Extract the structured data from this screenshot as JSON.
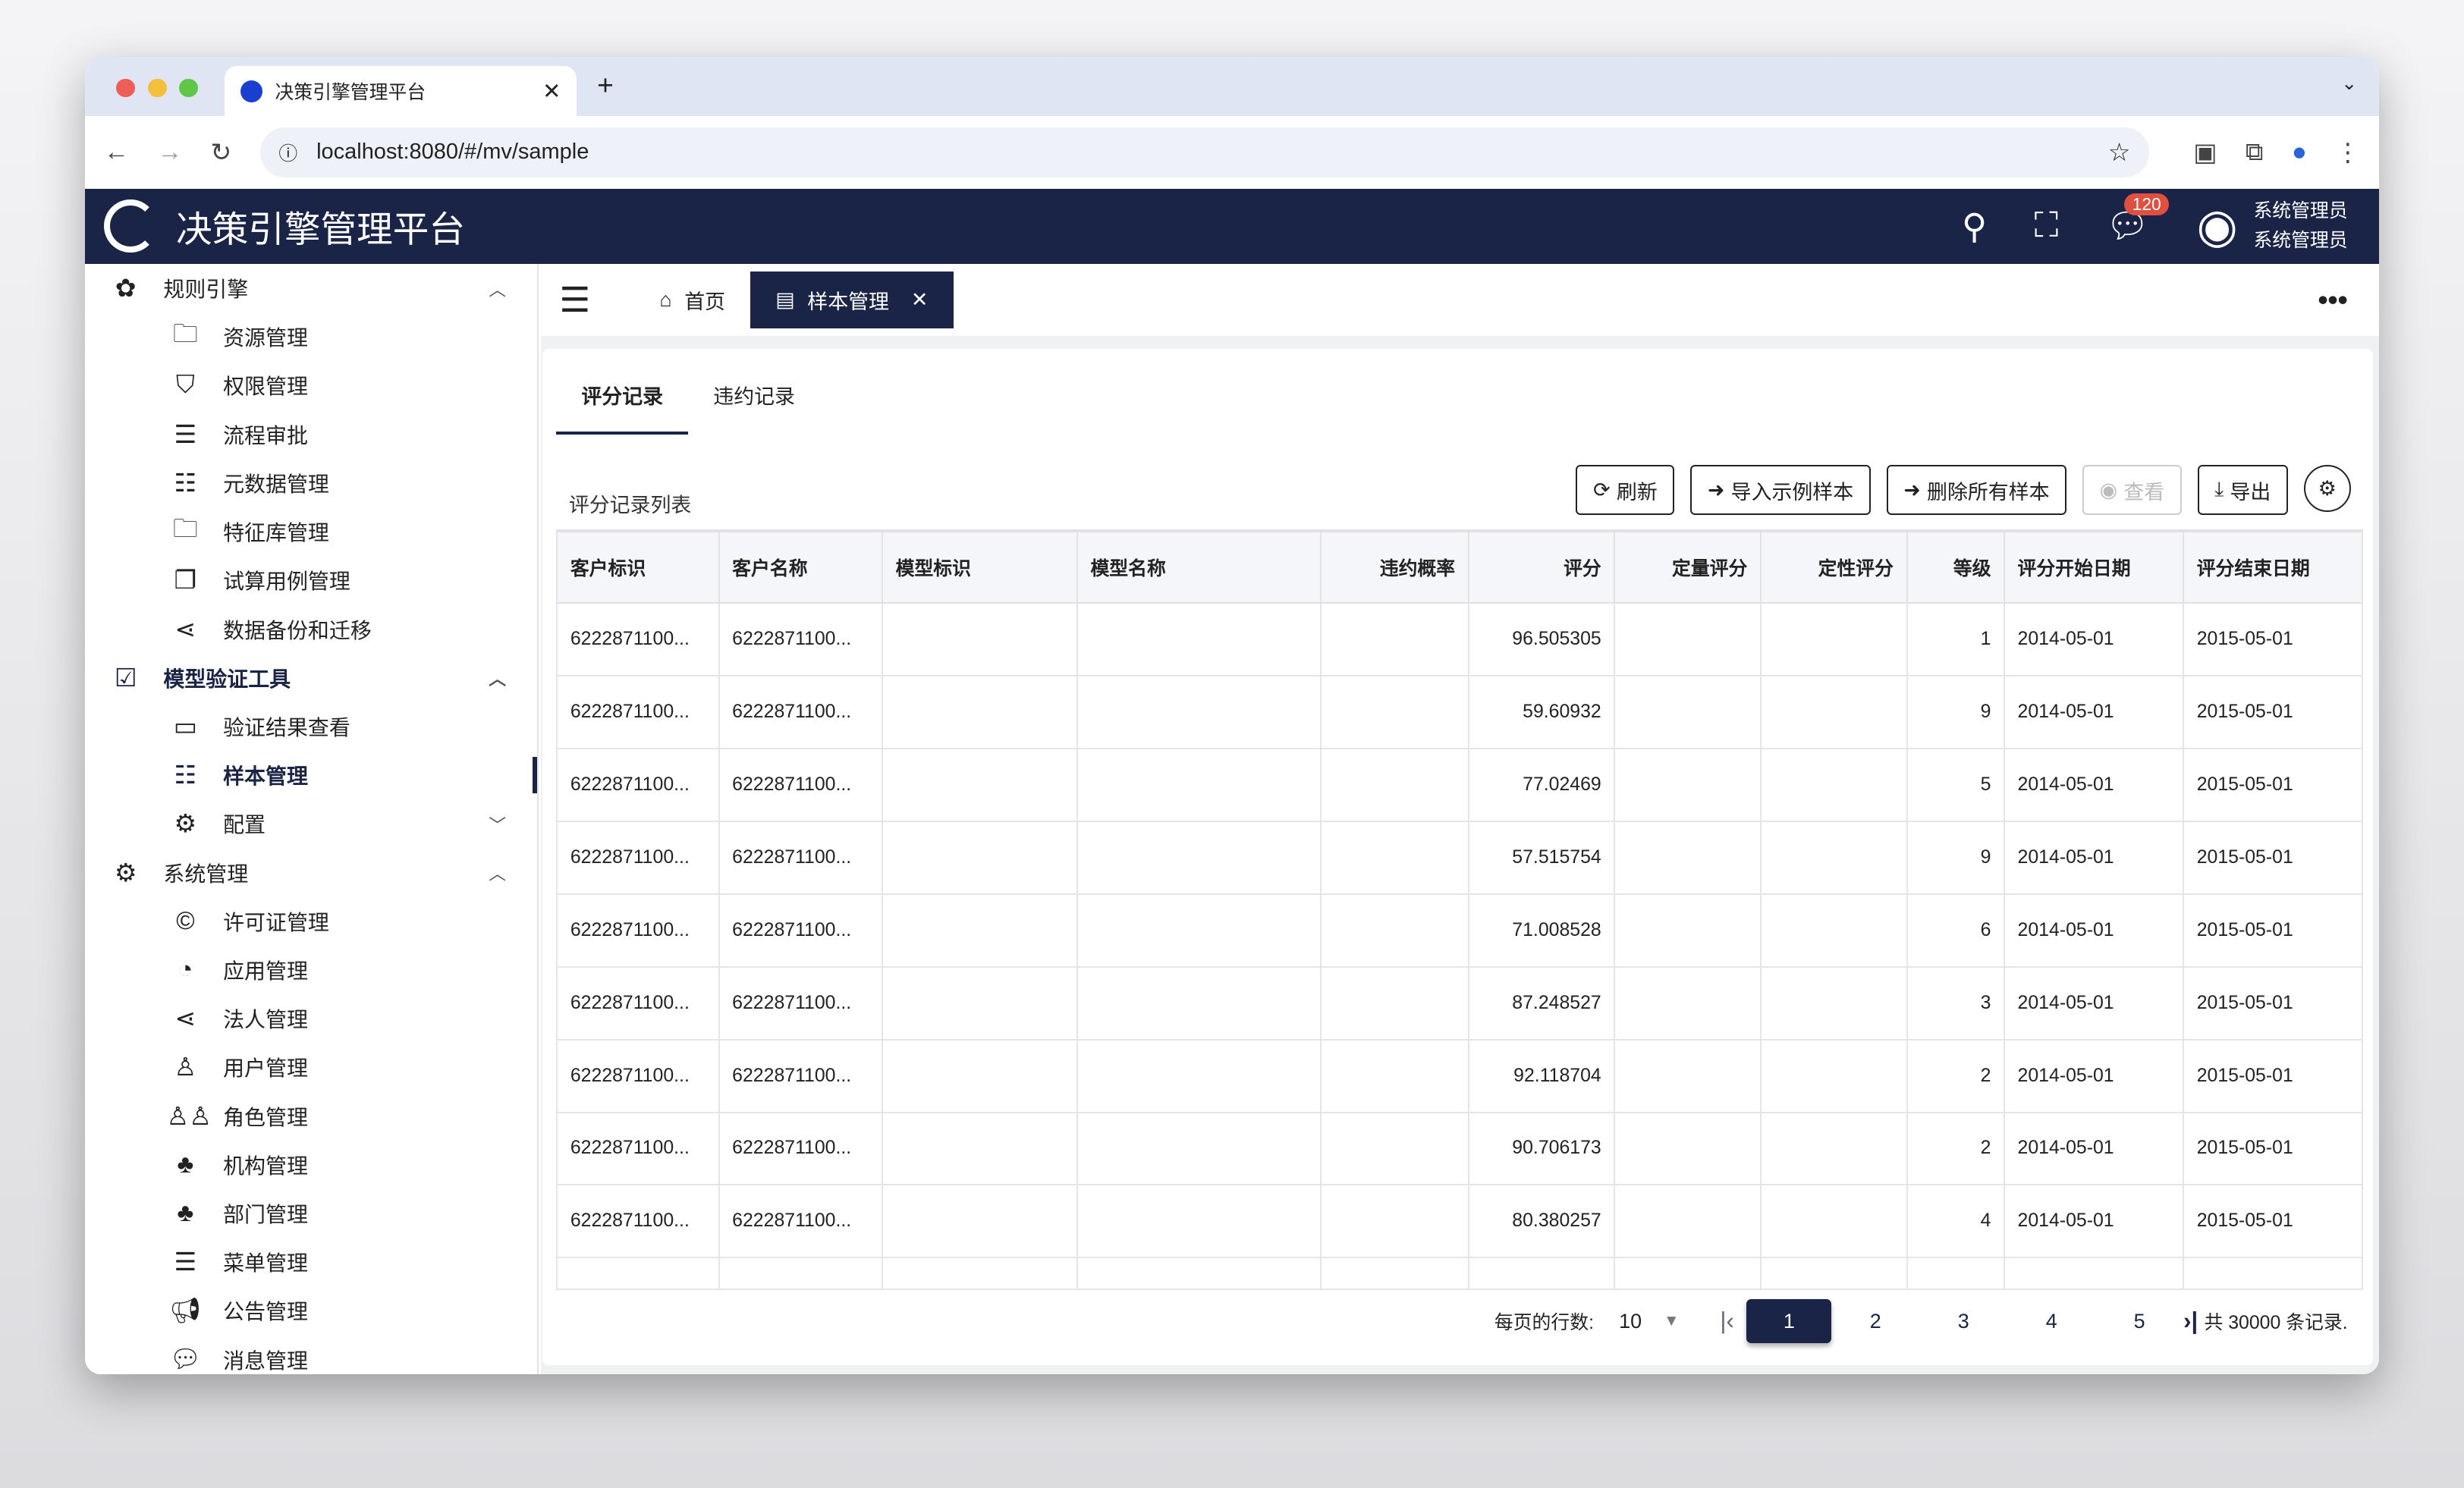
{
  "browser": {
    "tab_title": "决策引擎管理平台",
    "url": "localhost:8080/#/mv/sample"
  },
  "header": {
    "title": "决策引擎管理平台",
    "badge": "120",
    "user_name": "系统管理员",
    "user_role": "系统管理员"
  },
  "sidebar": {
    "groups": [
      {
        "label": "规则引擎",
        "icon": "cluster-icon",
        "items": [
          {
            "label": "资源管理",
            "icon": "folder-icon"
          },
          {
            "label": "权限管理",
            "icon": "shield-icon"
          },
          {
            "label": "流程审批",
            "icon": "sliders-icon"
          },
          {
            "label": "元数据管理",
            "icon": "list-icon"
          },
          {
            "label": "特征库管理",
            "icon": "folder-icon"
          },
          {
            "label": "试算用例管理",
            "icon": "copy-icon"
          },
          {
            "label": "数据备份和迁移",
            "icon": "share-icon"
          }
        ]
      },
      {
        "label": "模型验证工具",
        "icon": "clipboard-icon",
        "active": true,
        "items": [
          {
            "label": "验证结果查看",
            "icon": "monitor-icon"
          },
          {
            "label": "样本管理",
            "icon": "list-icon",
            "active": true
          },
          {
            "label": "配置",
            "icon": "gear-icon",
            "collapsed": true
          }
        ]
      },
      {
        "label": "系统管理",
        "icon": "gear-icon",
        "items": [
          {
            "label": "许可证管理",
            "icon": "copyright-icon"
          },
          {
            "label": "应用管理",
            "icon": "app-icon"
          },
          {
            "label": "法人管理",
            "icon": "share-icon"
          },
          {
            "label": "用户管理",
            "icon": "user-icon"
          },
          {
            "label": "角色管理",
            "icon": "users-icon"
          },
          {
            "label": "机构管理",
            "icon": "org-icon"
          },
          {
            "label": "部门管理",
            "icon": "org-icon"
          },
          {
            "label": "菜单管理",
            "icon": "menu-icon"
          },
          {
            "label": "公告管理",
            "icon": "megaphone-icon"
          },
          {
            "label": "消息管理",
            "icon": "chat-icon"
          }
        ]
      }
    ]
  },
  "page_tabs": {
    "home": "首页",
    "current": "样本管理"
  },
  "inner_tabs": [
    "评分记录",
    "违约记录"
  ],
  "list_title": "评分记录列表",
  "toolbar": {
    "refresh": "刷新",
    "import": "导入示例样本",
    "delete_all": "删除所有样本",
    "view": "查看",
    "export": "导出"
  },
  "table": {
    "columns": [
      "客户标识",
      "客户名称",
      "模型标识",
      "模型名称",
      "违约概率",
      "评分",
      "定量评分",
      "定性评分",
      "等级",
      "评分开始日期",
      "评分结束日期"
    ],
    "rows": [
      [
        "6222871100...",
        "6222871100...",
        "",
        "",
        "",
        "96.505305",
        "",
        "",
        "1",
        "2014-05-01",
        "2015-05-01"
      ],
      [
        "6222871100...",
        "6222871100...",
        "",
        "",
        "",
        "59.60932",
        "",
        "",
        "9",
        "2014-05-01",
        "2015-05-01"
      ],
      [
        "6222871100...",
        "6222871100...",
        "",
        "",
        "",
        "77.02469",
        "",
        "",
        "5",
        "2014-05-01",
        "2015-05-01"
      ],
      [
        "6222871100...",
        "6222871100...",
        "",
        "",
        "",
        "57.515754",
        "",
        "",
        "9",
        "2014-05-01",
        "2015-05-01"
      ],
      [
        "6222871100...",
        "6222871100...",
        "",
        "",
        "",
        "71.008528",
        "",
        "",
        "6",
        "2014-05-01",
        "2015-05-01"
      ],
      [
        "6222871100...",
        "6222871100...",
        "",
        "",
        "",
        "87.248527",
        "",
        "",
        "3",
        "2014-05-01",
        "2015-05-01"
      ],
      [
        "6222871100...",
        "6222871100...",
        "",
        "",
        "",
        "92.118704",
        "",
        "",
        "2",
        "2014-05-01",
        "2015-05-01"
      ],
      [
        "6222871100...",
        "6222871100...",
        "",
        "",
        "",
        "90.706173",
        "",
        "",
        "2",
        "2014-05-01",
        "2015-05-01"
      ],
      [
        "6222871100...",
        "6222871100...",
        "",
        "",
        "",
        "80.380257",
        "",
        "",
        "4",
        "2014-05-01",
        "2015-05-01"
      ]
    ]
  },
  "pagination": {
    "rows_label": "每页的行数:",
    "rows_per_page": "10",
    "pages": [
      "1",
      "2",
      "3",
      "4",
      "5"
    ],
    "current": "1",
    "total": "共 30000 条记录."
  }
}
